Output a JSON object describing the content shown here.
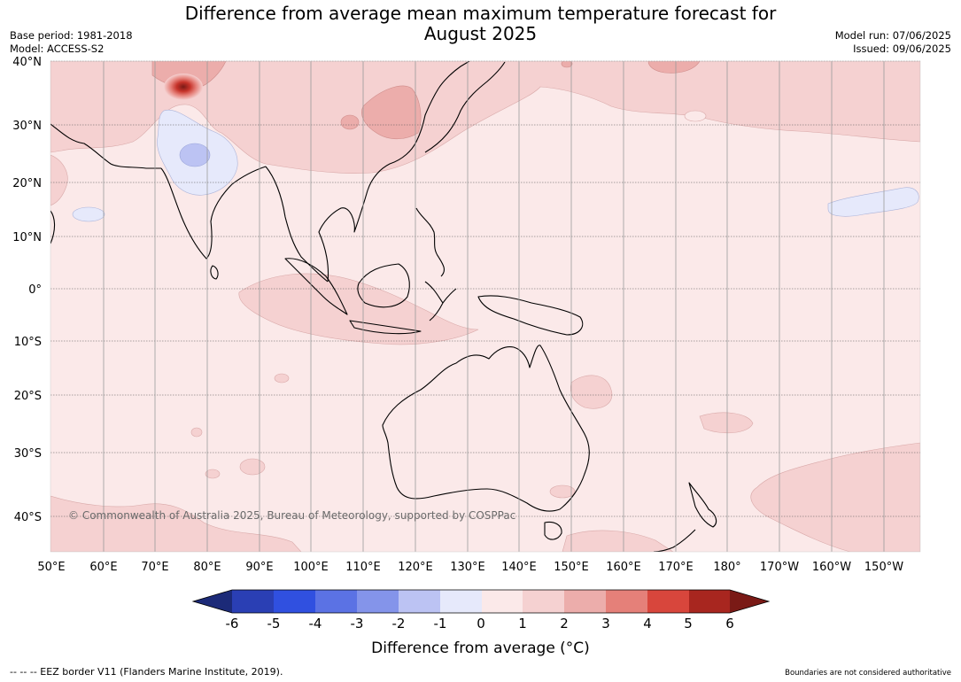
{
  "title": [
    "Difference from average mean maximum temperature forecast for",
    "August 2025"
  ],
  "meta_left": [
    "Base period: 1981-2018",
    "Model: ACCESS-S2"
  ],
  "meta_right": [
    "Model run: 07/06/2025",
    "Issued: 09/06/2025"
  ],
  "copyright": "© Commonwealth of Australia 2025, Bureau of Meteorology, supported by COSPPac",
  "lat_labels": [
    "40°N",
    "30°N",
    "20°N",
    "10°N",
    "0°",
    "10°S",
    "20°S",
    "30°S",
    "40°S"
  ],
  "lon_labels": [
    "50°E",
    "60°E",
    "70°E",
    "80°E",
    "90°E",
    "100°E",
    "110°E",
    "120°E",
    "130°E",
    "140°E",
    "150°E",
    "160°E",
    "170°E",
    "180°",
    "170°W",
    "160°W",
    "150°W"
  ],
  "colorbar": {
    "label": "Difference from average (°C)",
    "ticks": [
      "-6",
      "-5",
      "-4",
      "-3",
      "-2",
      "-1",
      "0",
      "1",
      "2",
      "3",
      "4",
      "5",
      "6"
    ],
    "colors": [
      "#1c2a78",
      "#2a3fb4",
      "#3050e0",
      "#5b72e4",
      "#8494ea",
      "#bcc3f3",
      "#e6e9fb",
      "#fbe9e9",
      "#f5d1d1",
      "#ecadab",
      "#e58079",
      "#d8463c",
      "#a8261f",
      "#7a1a16"
    ]
  },
  "footer_left": "--  --  -- EEZ border V11 (Flanders Marine Institute, 2019).",
  "footer_right": "Boundaries are not considered authoritative"
}
